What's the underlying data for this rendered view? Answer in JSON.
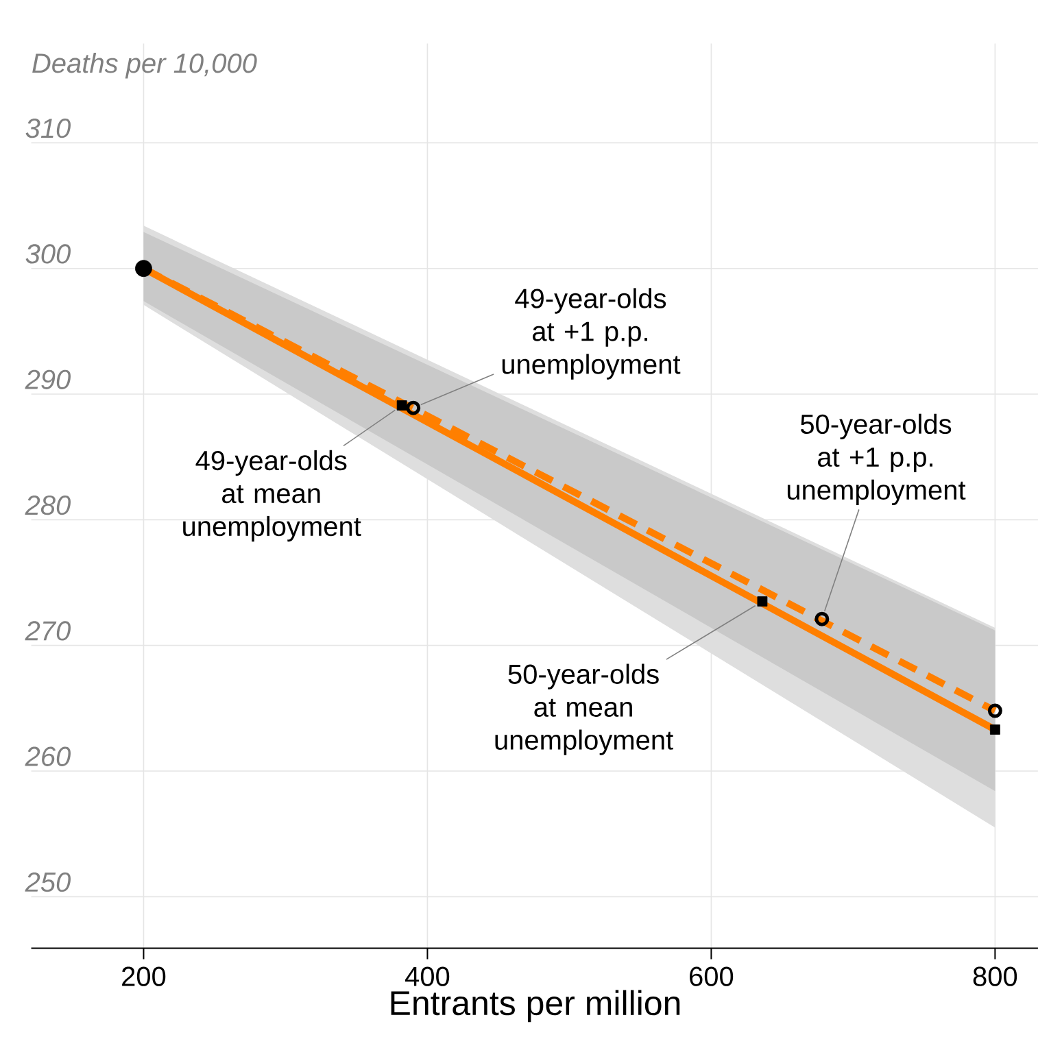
{
  "chart_data": {
    "type": "line",
    "xlabel": "Entrants per million",
    "ylabel": "Deaths per 10,000",
    "xlim": [
      120.8,
      831
    ],
    "ylim": [
      245.9,
      317.9
    ],
    "xticks": [
      200,
      400,
      600,
      800
    ],
    "yticks": [
      250,
      260,
      270,
      280,
      290,
      300,
      310
    ],
    "grid": true,
    "series": [
      {
        "color": "#ff7f00",
        "line_style": "dashed",
        "x": [
          200,
          800
        ],
        "values": [
          300,
          264.8
        ],
        "lower": [
          297.1,
          255.5
        ],
        "upper": [
          303.4,
          271.4
        ]
      },
      {
        "color": "#ff7f00",
        "line_style": "solid",
        "x": [
          200,
          800
        ],
        "values": [
          300,
          263.3
        ],
        "lower": [
          297.4,
          258.4
        ],
        "upper": [
          302.9,
          271.2
        ]
      },
      {
        "type": "scatter",
        "color": "#000000",
        "marker": "square",
        "x": [
          382,
          636,
          800
        ],
        "values": [
          289.1,
          273.5,
          263.3
        ]
      },
      {
        "type": "scatter",
        "color": "#000000",
        "marker": "circle",
        "x": [
          390,
          678,
          800
        ],
        "values": [
          288.9,
          272.1,
          264.8
        ]
      },
      {
        "type": "scatter",
        "color": "#000000",
        "marker": "circle",
        "x": [
          200
        ],
        "values": [
          300
        ]
      }
    ],
    "annotations": [
      {
        "text": "49-year-olds at +1 p.p. unemployment",
        "x": 390,
        "y": 288.9
      },
      {
        "text": "49-year-olds at mean unemployment",
        "x": 382,
        "y": 289.1
      },
      {
        "text": "50-year-olds at +1 p.p. unemployment",
        "x": 678,
        "y": 272.1
      },
      {
        "text": "50-year-olds at mean unemployment",
        "x": 636,
        "y": 273.5
      }
    ]
  }
}
